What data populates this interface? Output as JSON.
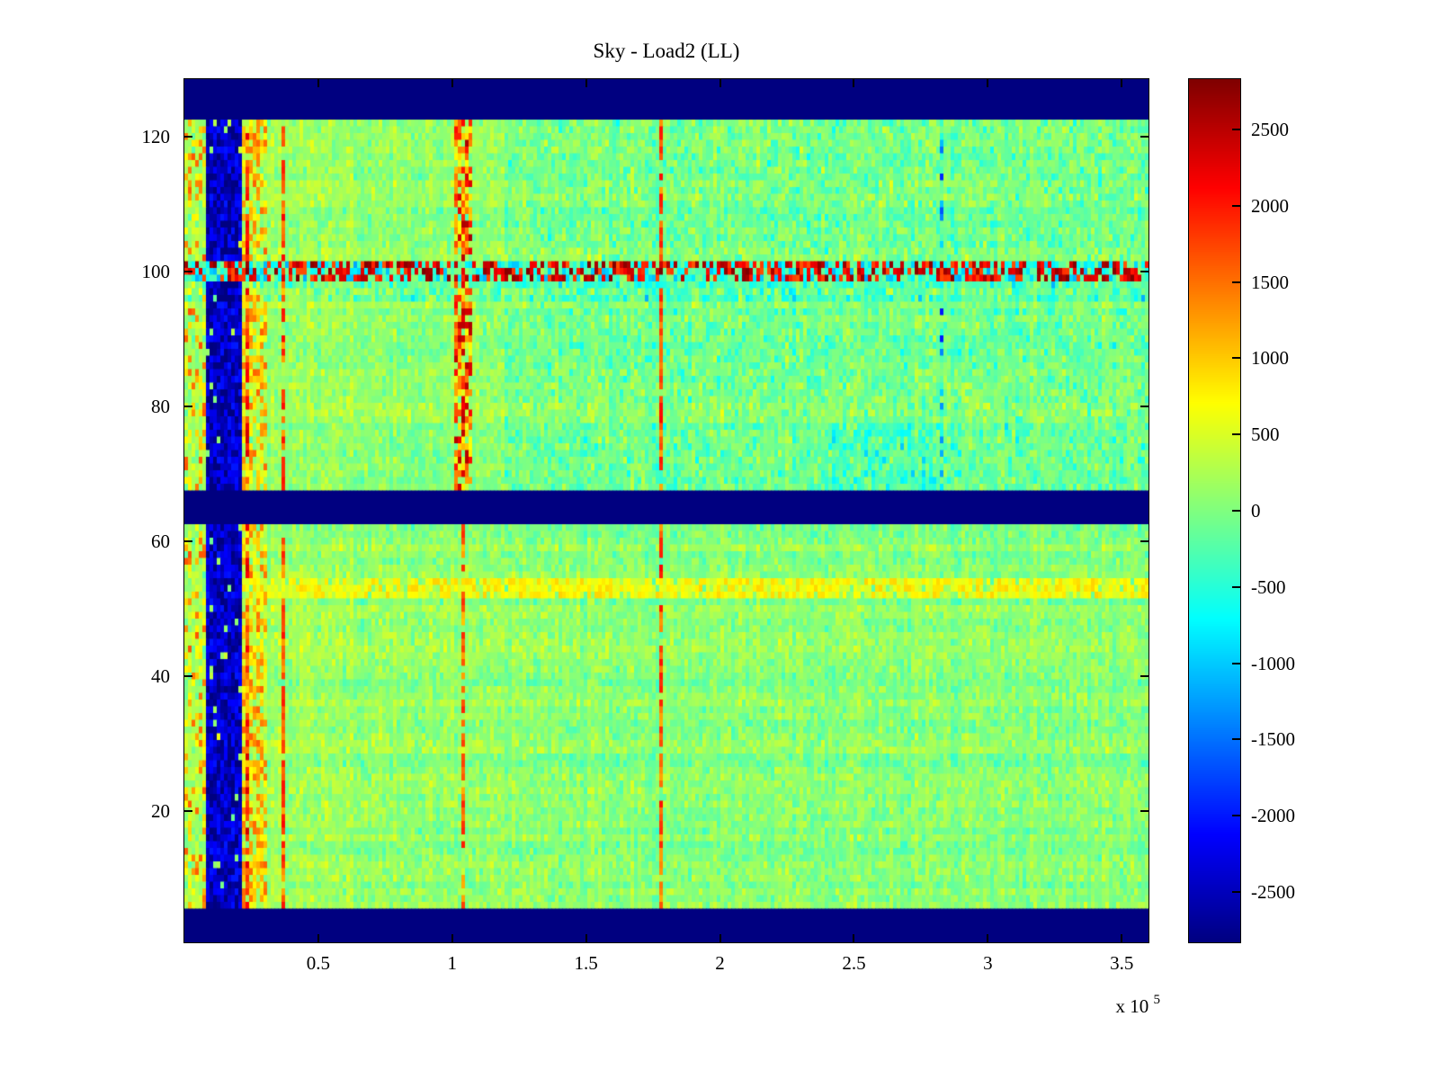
{
  "chart_data": {
    "type": "heatmap",
    "title": "Sky - Load2 (LL)",
    "x_range": [
      0,
      360000
    ],
    "y_range": [
      0.5,
      128.5
    ],
    "x_exponent_prefix": "x 10",
    "x_exponent_value": "5",
    "x_ticks": [
      {
        "value": 50000,
        "label": "0.5"
      },
      {
        "value": 100000,
        "label": "1"
      },
      {
        "value": 150000,
        "label": "1.5"
      },
      {
        "value": 200000,
        "label": "2"
      },
      {
        "value": 250000,
        "label": "2.5"
      },
      {
        "value": 300000,
        "label": "3"
      },
      {
        "value": 350000,
        "label": "3.5"
      }
    ],
    "y_ticks": [
      {
        "value": 20,
        "label": "20"
      },
      {
        "value": 40,
        "label": "40"
      },
      {
        "value": 60,
        "label": "60"
      },
      {
        "value": 80,
        "label": "80"
      },
      {
        "value": 100,
        "label": "100"
      },
      {
        "value": 120,
        "label": "120"
      }
    ],
    "colorbar": {
      "colormap": "jet",
      "min": -2830,
      "max": 2830,
      "ticks": [
        {
          "value": 2500,
          "label": "2500"
        },
        {
          "value": 2000,
          "label": "2000"
        },
        {
          "value": 1500,
          "label": "1500"
        },
        {
          "value": 1000,
          "label": "1000"
        },
        {
          "value": 500,
          "label": "500"
        },
        {
          "value": 0,
          "label": "0"
        },
        {
          "value": -500,
          "label": "-500"
        },
        {
          "value": -1000,
          "label": "-1000"
        },
        {
          "value": -1500,
          "label": "-1500"
        },
        {
          "value": -2000,
          "label": "-2000"
        },
        {
          "value": -2500,
          "label": "-2500"
        }
      ]
    },
    "grid": {
      "nx": 268,
      "ny": 128
    },
    "noise": {
      "seed": 1337,
      "mean": 60,
      "std": 380,
      "row_streak": 130,
      "col_streak": 110,
      "warm_left_bias": 170,
      "warm_left_extent": 140000
    },
    "features": [
      {
        "name": "left-edge-speckle",
        "x": [
          0,
          8500
        ],
        "y": [
          5.8,
          122.8
        ],
        "mode": "set",
        "value": 700,
        "jitter": 1000,
        "prob": 0.4
      },
      {
        "name": "blue-column",
        "x": [
          8500,
          21500
        ],
        "y": [
          5.8,
          122.8
        ],
        "mode": "set",
        "value": -2500,
        "jitter": 520,
        "prob": 0.96
      },
      {
        "name": "orange-band",
        "x": [
          21500,
          31500
        ],
        "y": [
          5.8,
          122.8
        ],
        "mode": "set",
        "value": 850,
        "jitter": 750,
        "prob": 0.8
      },
      {
        "name": "red-line-left",
        "x": [
          23000,
          24600
        ],
        "y": [
          5.8,
          122.8
        ],
        "mode": "set",
        "value": 1900,
        "jitter": 500,
        "prob": 0.7
      },
      {
        "name": "red-line-36k",
        "x": [
          35800,
          37400
        ],
        "y": [
          5.8,
          122.8
        ],
        "mode": "set",
        "value": 1650,
        "jitter": 500,
        "prob": 0.75
      },
      {
        "name": "upper-right-cyan-tint",
        "x": [
          120000,
          360000
        ],
        "y": [
          67.6,
          122.8
        ],
        "mode": "add",
        "value": -140,
        "jitter": 260,
        "prob": 0.7
      },
      {
        "name": "cyan-blotch",
        "x": [
          240000,
          285000
        ],
        "y": [
          66,
          78
        ],
        "mode": "add",
        "value": -300,
        "jitter": 220,
        "prob": 0.55
      },
      {
        "name": "red-band-105k-upper",
        "x": [
          101000,
          108000
        ],
        "y": [
          67.6,
          122.8
        ],
        "mode": "set",
        "value": 1500,
        "jitter": 1100,
        "prob": 0.8
      },
      {
        "name": "red-line-105k-lower",
        "x": [
          103200,
          104900
        ],
        "y": [
          5.8,
          67.6
        ],
        "mode": "set",
        "value": 1500,
        "jitter": 500,
        "prob": 0.75
      },
      {
        "name": "red-line-178k",
        "x": [
          177500,
          179200
        ],
        "y": [
          5.8,
          122.8
        ],
        "mode": "set",
        "value": 1650,
        "jitter": 500,
        "prob": 0.8
      },
      {
        "name": "dark-dashed-283k",
        "x": [
          282500,
          283900
        ],
        "y": [
          67.6,
          122.8
        ],
        "mode": "set",
        "value": -1600,
        "jitter": 700,
        "prob": 0.3
      },
      {
        "name": "cyan-row-97",
        "x": [
          0,
          360000
        ],
        "y": [
          95.5,
          98.8
        ],
        "mode": "add",
        "value": -330,
        "jitter": 250,
        "prob": 0.6
      },
      {
        "name": "hot-row-100-base",
        "x": [
          0,
          360000
        ],
        "y": [
          98.8,
          101.6
        ],
        "mode": "set",
        "value": -550,
        "jitter": 650,
        "prob": 0.92
      },
      {
        "name": "hot-row-100-speckle",
        "x": [
          0,
          360000
        ],
        "y": [
          98.8,
          101.6
        ],
        "mode": "set",
        "value": 2250,
        "jitter": 600,
        "prob": 0.5
      },
      {
        "name": "bright-row-53",
        "x": [
          23000,
          360000
        ],
        "y": [
          51.6,
          54.4
        ],
        "mode": "set",
        "value": 680,
        "jitter": 280,
        "prob": 0.85
      },
      {
        "name": "top-blue-band",
        "x": [
          0,
          360000
        ],
        "y": [
          122.8,
          128.5
        ],
        "mode": "set",
        "value": -2830,
        "jitter": 0,
        "prob": 1
      },
      {
        "name": "mid-blue-band",
        "x": [
          0,
          360000
        ],
        "y": [
          62.2,
          67.6
        ],
        "mode": "set",
        "value": -2830,
        "jitter": 0,
        "prob": 1
      },
      {
        "name": "bottom-blue-band",
        "x": [
          0,
          360000
        ],
        "y": [
          0.5,
          5.8
        ],
        "mode": "set",
        "value": -2830,
        "jitter": 0,
        "prob": 1
      }
    ]
  }
}
